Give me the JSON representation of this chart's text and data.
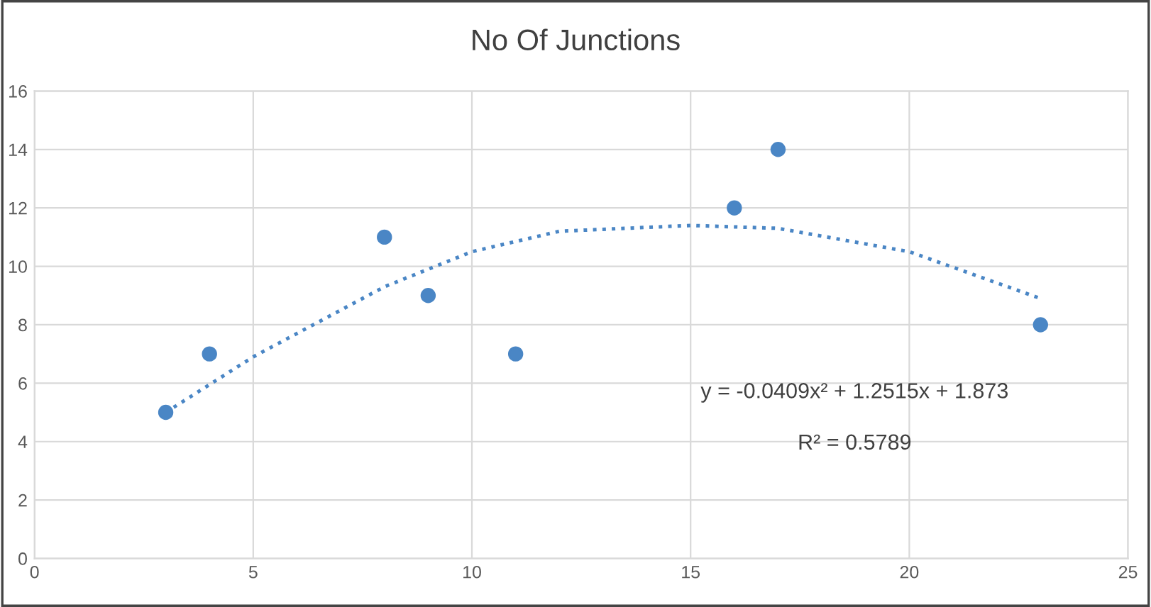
{
  "chart_data": {
    "type": "scatter",
    "title": "No Of Junctions",
    "series": [
      {
        "color": "#4a86c5",
        "marker": "circle",
        "x": [
          3,
          4,
          8,
          9,
          11,
          16,
          17,
          23
        ],
        "values": [
          5,
          7,
          11,
          9,
          7,
          12,
          14,
          8
        ]
      },
      {
        "type": "line",
        "color": "#4a86c5",
        "line_style": "dotted",
        "marker": "none",
        "x": [
          3,
          5,
          8,
          10,
          12,
          15,
          17,
          20,
          23
        ],
        "values": [
          5.0,
          6.9,
          9.3,
          10.5,
          11.2,
          11.4,
          11.3,
          10.5,
          8.9
        ]
      }
    ],
    "xlim": [
      0,
      25
    ],
    "xticks": [
      0,
      5,
      10,
      15,
      20,
      25
    ],
    "ylim": [
      0,
      16
    ],
    "yticks": [
      0,
      2,
      4,
      6,
      8,
      10,
      12,
      14,
      16
    ],
    "grid": true,
    "annotations": [
      "y = -0.0409x² + 1.2515x + 1.873",
      "R² = 0.5789"
    ]
  }
}
